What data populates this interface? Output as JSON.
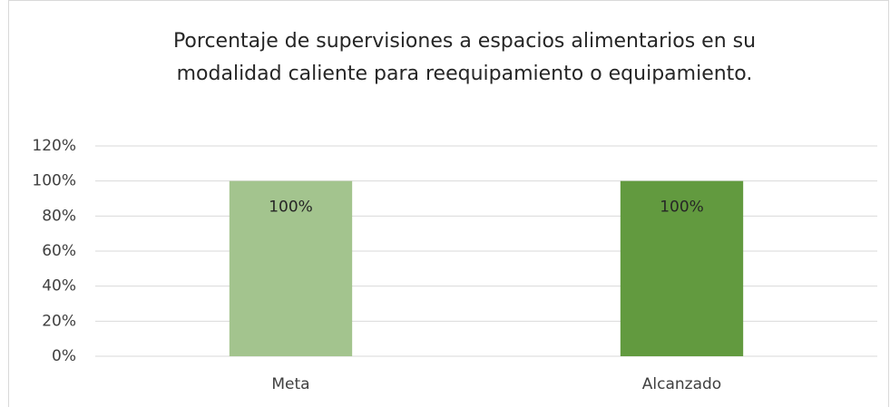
{
  "chart_data": {
    "type": "bar",
    "title": "Porcentaje de supervisiones a espacios alimentarios en su modalidad caliente para reequipamiento o equipamiento.",
    "categories": [
      "Meta",
      "Alcanzado"
    ],
    "values": [
      100,
      100
    ],
    "value_labels": [
      "100%",
      "100%"
    ],
    "colors": [
      "#a3c48e",
      "#629a3f"
    ],
    "ylim": [
      0,
      120
    ],
    "yticks": [
      {
        "value": 0,
        "label": "0%"
      },
      {
        "value": 20,
        "label": "20%"
      },
      {
        "value": 40,
        "label": "40%"
      },
      {
        "value": 60,
        "label": "60%"
      },
      {
        "value": 80,
        "label": "80%"
      },
      {
        "value": 100,
        "label": "100%"
      },
      {
        "value": 120,
        "label": "120%"
      }
    ],
    "grid": true
  }
}
